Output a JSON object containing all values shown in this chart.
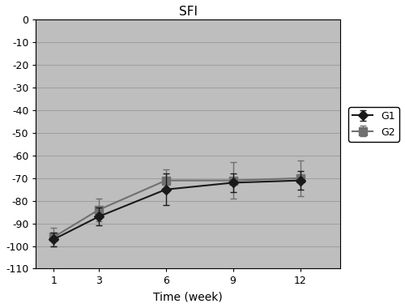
{
  "title": "SFI",
  "xlabel": "Time (week)",
  "x": [
    1,
    3,
    6,
    9,
    12
  ],
  "G1_y": [
    -97,
    -87,
    -75,
    -72,
    -71
  ],
  "G1_err": [
    3,
    4,
    7,
    4,
    4
  ],
  "G2_y": [
    -96,
    -84,
    -71,
    -71,
    -70
  ],
  "G2_err": [
    4,
    5,
    5,
    8,
    8
  ],
  "ylim": [
    -110,
    0
  ],
  "yticks": [
    0,
    -10,
    -20,
    -30,
    -40,
    -50,
    -60,
    -70,
    -80,
    -90,
    -100,
    -110
  ],
  "plot_bg_color": "#bebebe",
  "fig_bg_color": "#ffffff",
  "G1_color": "#1a1a1a",
  "G2_color": "#707070",
  "legend_labels": [
    "G1",
    "G2"
  ],
  "title_fontsize": 11,
  "label_fontsize": 10,
  "tick_fontsize": 9,
  "xlim": [
    0.2,
    13.8
  ]
}
